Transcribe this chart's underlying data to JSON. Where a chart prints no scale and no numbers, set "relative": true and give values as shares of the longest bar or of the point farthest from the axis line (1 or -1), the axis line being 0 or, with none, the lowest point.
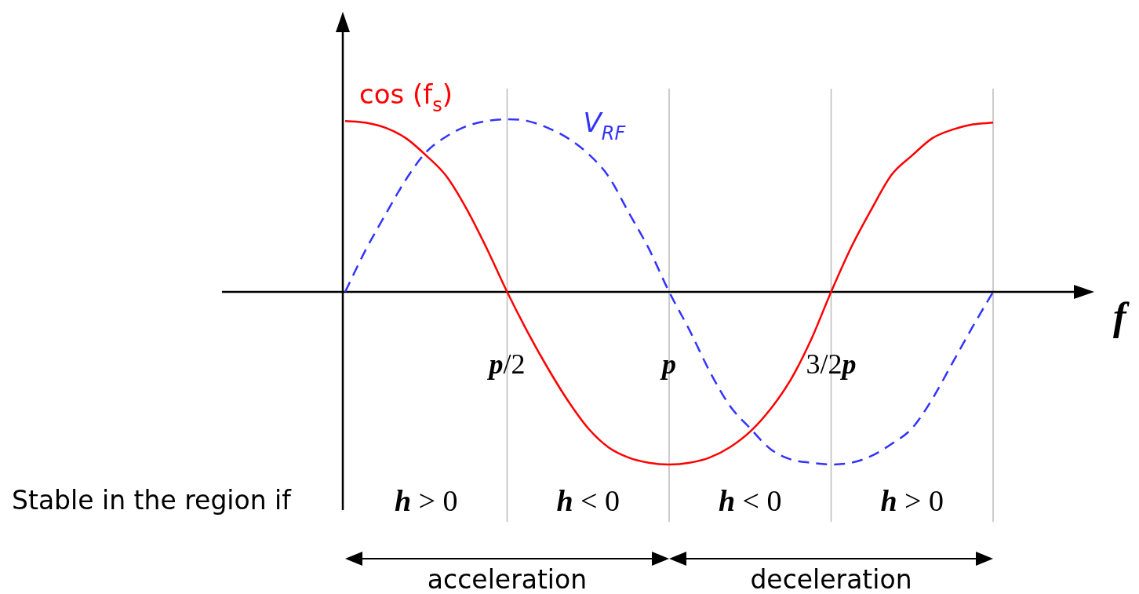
{
  "chart_data": {
    "type": "line",
    "relative": true,
    "xlabel": "f",
    "grid": "x",
    "categories": [
      null,
      null,
      null,
      null,
      null,
      null,
      null,
      null,
      "p/2",
      null,
      null,
      null,
      null,
      null,
      null,
      null,
      "p",
      null,
      null,
      null,
      null,
      null,
      null,
      null,
      "3/2p",
      null,
      null,
      null,
      null,
      null,
      null,
      null,
      null
    ],
    "series": [
      {
        "name": "cos (f$_{s}$)",
        "color": "#ff0000",
        "line_style": "solid",
        "values": [
          0.99,
          0.98,
          0.95,
          0.89,
          0.79,
          0.67,
          0.48,
          0.25,
          0,
          -0.23,
          -0.44,
          -0.63,
          -0.79,
          -0.9,
          -0.96,
          -0.99,
          -1.0,
          -0.99,
          -0.96,
          -0.9,
          -0.81,
          -0.68,
          -0.51,
          -0.28,
          0,
          0.26,
          0.48,
          0.68,
          0.79,
          0.89,
          0.94,
          0.97,
          0.98
        ]
      },
      {
        "name": "V$_{RF}$",
        "color": "#3333ff",
        "line_style": "dashed",
        "values": [
          0,
          0.24,
          0.45,
          0.65,
          0.81,
          0.9,
          0.96,
          0.99,
          1.0,
          0.99,
          0.95,
          0.89,
          0.8,
          0.67,
          0.46,
          0.25,
          0,
          -0.22,
          -0.46,
          -0.66,
          -0.79,
          -0.91,
          -0.97,
          -0.99,
          -1.0,
          -0.99,
          -0.95,
          -0.88,
          -0.79,
          -0.62,
          -0.41,
          -0.2,
          0
        ]
      }
    ],
    "annotations": [
      "Stable in the region if",
      "h > 0",
      "h < 0",
      "h < 0",
      "h > 0",
      "acceleration",
      "deceleration"
    ]
  }
}
